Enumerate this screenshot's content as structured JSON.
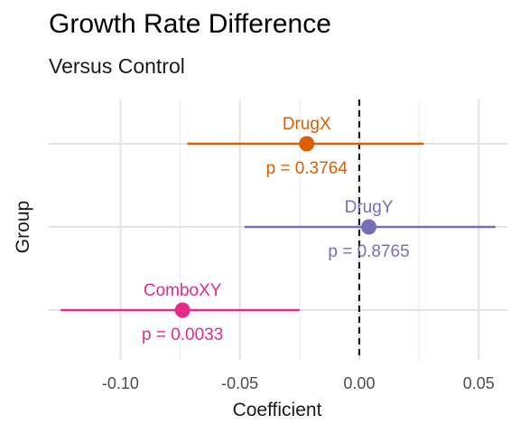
{
  "chart_data": {
    "type": "forest",
    "title": "Growth Rate Difference",
    "subtitle": "Versus Control",
    "xlabel": "Coefficient",
    "ylabel": "Group",
    "xlim": [
      -0.13,
      0.062
    ],
    "xticks": [
      -0.1,
      -0.05,
      0.0,
      0.05
    ],
    "xtick_labels": [
      "-0.10",
      "-0.05",
      "0.00",
      "0.05"
    ],
    "reference_line": 0,
    "grid": true,
    "legend": "none",
    "series": [
      {
        "name": "DrugX",
        "estimate": -0.022,
        "lower": -0.072,
        "upper": 0.027,
        "p_label": "p = 0.3764",
        "color": "#d95f02"
      },
      {
        "name": "DrugY",
        "estimate": 0.004,
        "lower": -0.048,
        "upper": 0.057,
        "p_label": "p = 0.8765",
        "color": "#7570b3"
      },
      {
        "name": "ComboXY",
        "estimate": -0.074,
        "lower": -0.125,
        "upper": -0.025,
        "p_label": "p = 0.0033",
        "color": "#e7298a"
      }
    ]
  }
}
